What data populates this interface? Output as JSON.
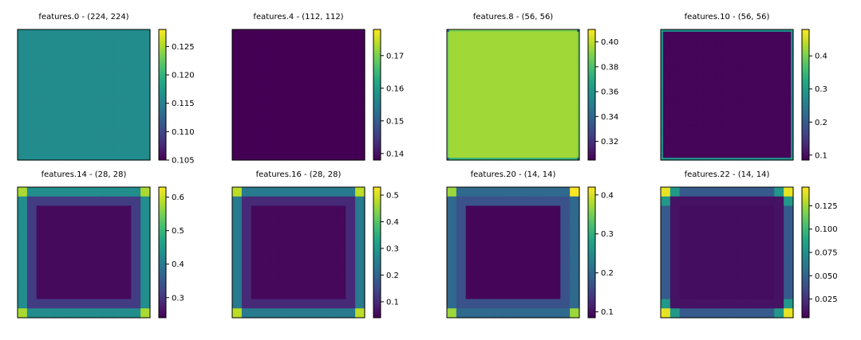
{
  "chart_data": [
    {
      "type": "heatmap",
      "title": "features.0 - (224, 224)",
      "colorbar": {
        "range": [
          0.105,
          0.128
        ],
        "ticks": [
          0.105,
          0.11,
          0.115,
          0.12,
          0.125
        ],
        "tick_labels": [
          "0.105",
          "0.110",
          "0.115",
          "0.120",
          "0.125"
        ]
      },
      "pattern": "uniform",
      "values": {
        "center": 0.116
      }
    },
    {
      "type": "heatmap",
      "title": "features.4 - (112, 112)",
      "colorbar": {
        "range": [
          0.138,
          0.178
        ],
        "ticks": [
          0.14,
          0.15,
          0.16,
          0.17
        ],
        "tick_labels": [
          "0.14",
          "0.15",
          "0.16",
          "0.17"
        ]
      },
      "pattern": "uniform",
      "values": {
        "center": 0.138
      }
    },
    {
      "type": "heatmap",
      "title": "features.8 - (56, 56)",
      "colorbar": {
        "range": [
          0.305,
          0.41
        ],
        "ticks": [
          0.32,
          0.34,
          0.36,
          0.38,
          0.4
        ],
        "tick_labels": [
          "0.32",
          "0.34",
          "0.36",
          "0.38",
          "0.40"
        ]
      },
      "pattern": "border",
      "values": {
        "center": 0.395,
        "edge": 0.39,
        "bottom_edge": 0.375,
        "corner": 0.34
      }
    },
    {
      "type": "heatmap",
      "title": "features.10 - (56, 56)",
      "colorbar": {
        "range": [
          0.085,
          0.48
        ],
        "ticks": [
          0.1,
          0.2,
          0.3,
          0.4
        ],
        "tick_labels": [
          "0.1",
          "0.2",
          "0.3",
          "0.4"
        ]
      },
      "pattern": "border",
      "values": {
        "center": 0.09,
        "edge": 0.28,
        "corner": 0.32
      }
    },
    {
      "type": "heatmap",
      "title": "features.14 - (28, 28)",
      "colorbar": {
        "range": [
          0.24,
          0.63
        ],
        "ticks": [
          0.3,
          0.4,
          0.5,
          0.6
        ],
        "tick_labels": [
          "0.3",
          "0.4",
          "0.5",
          "0.6"
        ]
      },
      "pattern": "border",
      "values": {
        "center": 0.25,
        "edge": 0.43,
        "inner_edge": 0.31,
        "corner": 0.58
      }
    },
    {
      "type": "heatmap",
      "title": "features.16 - (28, 28)",
      "colorbar": {
        "range": [
          0.04,
          0.53
        ],
        "ticks": [
          0.1,
          0.2,
          0.3,
          0.4,
          0.5
        ],
        "tick_labels": [
          "0.1",
          "0.2",
          "0.3",
          "0.4",
          "0.5"
        ]
      },
      "pattern": "border",
      "values": {
        "center": 0.05,
        "edge": 0.24,
        "inner_edge": 0.1,
        "corner": 0.48
      }
    },
    {
      "type": "heatmap",
      "title": "features.20 - (14, 14)",
      "colorbar": {
        "range": [
          0.085,
          0.42
        ],
        "ticks": [
          0.1,
          0.2,
          0.3,
          0.4
        ],
        "tick_labels": [
          "0.1",
          "0.2",
          "0.3",
          "0.4"
        ]
      },
      "pattern": "border",
      "values": {
        "center": 0.09,
        "edge": 0.2,
        "inner_edge": 0.17,
        "corner": 0.37,
        "corner_tr": 0.42
      }
    },
    {
      "type": "heatmap",
      "title": "features.22 - (14, 14)",
      "colorbar": {
        "range": [
          0.005,
          0.145
        ],
        "ticks": [
          0.025,
          0.05,
          0.075,
          0.1,
          0.125
        ],
        "tick_labels": [
          "0.025",
          "0.050",
          "0.075",
          "0.100",
          "0.125"
        ]
      },
      "pattern": "border",
      "values": {
        "center": 0.01,
        "edge": 0.045,
        "inner_edge": 0.012,
        "corner": 0.14,
        "corner_mid": 0.08
      }
    }
  ]
}
